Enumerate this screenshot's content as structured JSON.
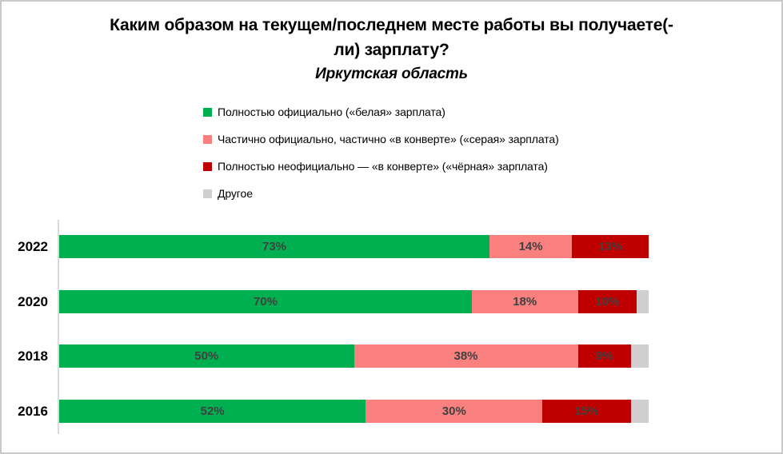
{
  "title": {
    "full": "Каким образом на текущем/последнем месте работы вы получаете(-ли) зарплату?",
    "line1": "Каким образом на текущем/последнем месте работы вы получаете(-",
    "line2": "ли) зарплату?"
  },
  "subtitle": "Иркутская область",
  "legend": {
    "items": [
      {
        "label": "Полностью официально («белая» зарплата)",
        "color": "#00B050"
      },
      {
        "label": "Частично официально, частично «в конверте» («серая» зарплата)",
        "color": "#FA8080"
      },
      {
        "label": "Полностью неофициально — «в конверте» («чёрная» зарплата)",
        "color": "#C00000"
      },
      {
        "label": "Другое",
        "color": "#D0CECE"
      }
    ]
  },
  "chart_data": {
    "type": "bar",
    "orientation": "horizontal",
    "stacked": true,
    "unit": "%",
    "categories": [
      "2022",
      "2020",
      "2018",
      "2016"
    ],
    "series": [
      {
        "name": "Полностью официально («белая» зарплата)",
        "color": "#00B050",
        "values": [
          73,
          70,
          50,
          52
        ],
        "show_labels": true
      },
      {
        "name": "Частично официально, частично «в конверте» («серая» зарплата)",
        "color": "#FA8080",
        "values": [
          14,
          18,
          38,
          30
        ],
        "show_labels": true
      },
      {
        "name": "Полностью неофициально — «в конверте» («чёрная» зарплата)",
        "color": "#C00000",
        "values": [
          13,
          10,
          9,
          15
        ],
        "show_labels": true
      },
      {
        "name": "Другое",
        "color": "#D0CECE",
        "values": [
          0,
          2,
          3,
          3
        ],
        "show_labels": false
      }
    ],
    "xlim": [
      0,
      100
    ],
    "value_label_format": "{value}%",
    "grid": false,
    "legend_position": "top-left-of-plot"
  }
}
